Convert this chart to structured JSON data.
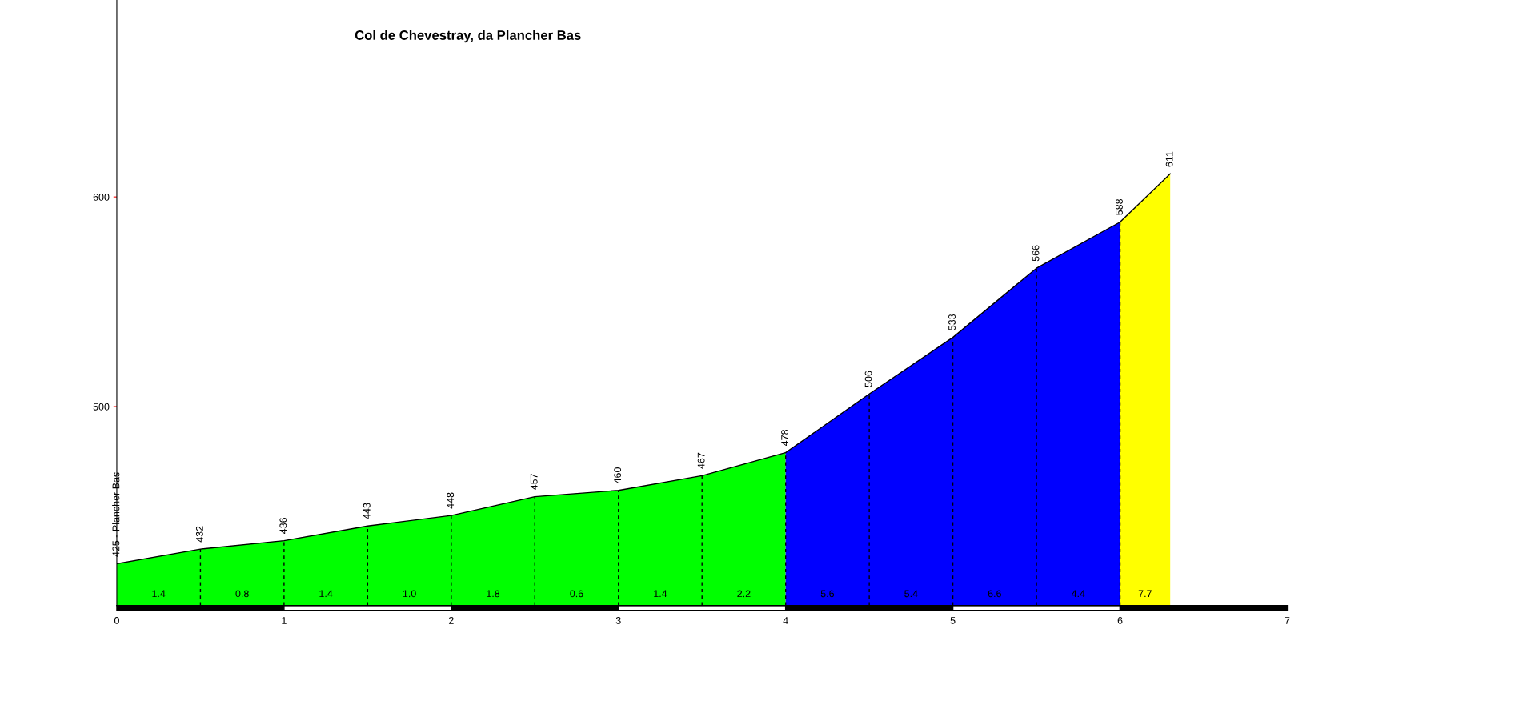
{
  "chart_data": {
    "type": "area",
    "title": "Col de Chevestray, da Plancher Bas",
    "series": [
      {
        "color": "#00ff00",
        "x": [
          0,
          0.5,
          1,
          1.5,
          2,
          2.5,
          3,
          3.5,
          4
        ],
        "values": [
          425,
          432,
          436,
          443,
          448,
          457,
          460,
          467,
          478
        ],
        "value_labels": [
          "425 - Plancher Bas",
          "432",
          "436",
          "443",
          "448",
          "457",
          "460",
          "467",
          "478"
        ]
      },
      {
        "color": "#0000ff",
        "x": [
          4,
          4.5,
          5,
          5.5,
          6
        ],
        "values": [
          478,
          506,
          533,
          566,
          588
        ],
        "value_labels": [
          null,
          "506",
          "533",
          "566",
          "588"
        ]
      },
      {
        "color": "#ffff00",
        "x": [
          6,
          6.3
        ],
        "values": [
          588,
          611
        ],
        "value_labels": [
          null,
          "611"
        ]
      }
    ],
    "annotations": [
      "1.4",
      "0.8",
      "1.4",
      "1.0",
      "1.8",
      "0.6",
      "1.4",
      "2.2",
      "5.6",
      "5.4",
      "6.6",
      "4.4",
      "7.7"
    ],
    "xlim": [
      0,
      7
    ],
    "xticks": [
      0,
      1,
      2,
      3,
      4,
      5,
      6,
      7
    ],
    "ylim": [
      405,
      694
    ],
    "yticks": [
      500,
      600
    ],
    "grid": false,
    "legend": false
  }
}
